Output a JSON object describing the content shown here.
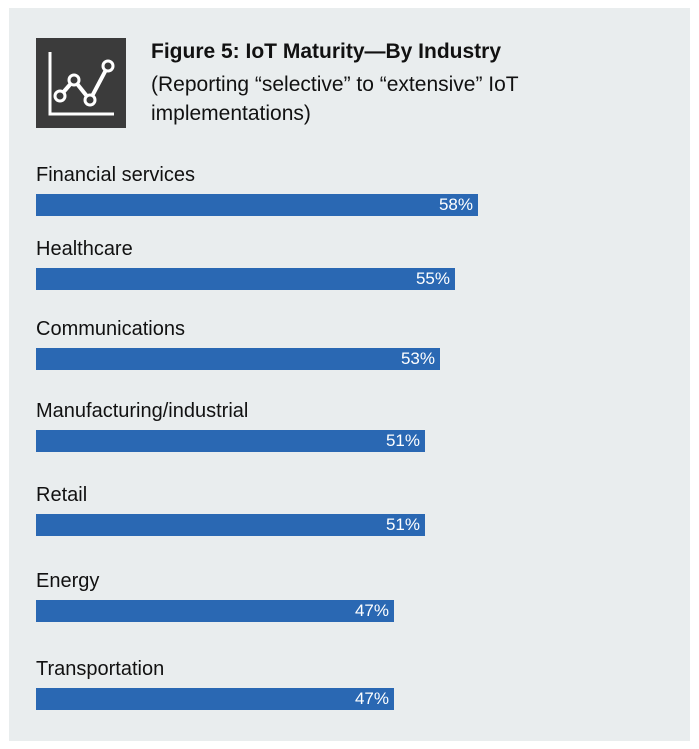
{
  "header": {
    "icon": "line-chart-icon",
    "title": "Figure 5: IoT Maturity—By Industry",
    "subtitle": "(Reporting “selective” to “extensive” IoT implementations)"
  },
  "colors": {
    "bar": "#2a68b3",
    "background": "#e9edee",
    "icon_background": "#3b3b3b"
  },
  "chart_data": {
    "type": "bar",
    "orientation": "horizontal",
    "title": "Figure 5: IoT Maturity—By Industry",
    "subtitle": "(Reporting “selective” to “extensive” IoT implementations)",
    "categories": [
      "Financial services",
      "Healthcare",
      "Communications",
      "Manufacturing/industrial",
      "Retail",
      "Energy",
      "Transportation"
    ],
    "values": [
      58,
      55,
      53,
      51,
      51,
      47,
      47
    ],
    "value_labels": [
      "58%",
      "55%",
      "53%",
      "51%",
      "51%",
      "47%",
      "47%"
    ],
    "unit": "%",
    "grid": false,
    "legend": "none"
  }
}
